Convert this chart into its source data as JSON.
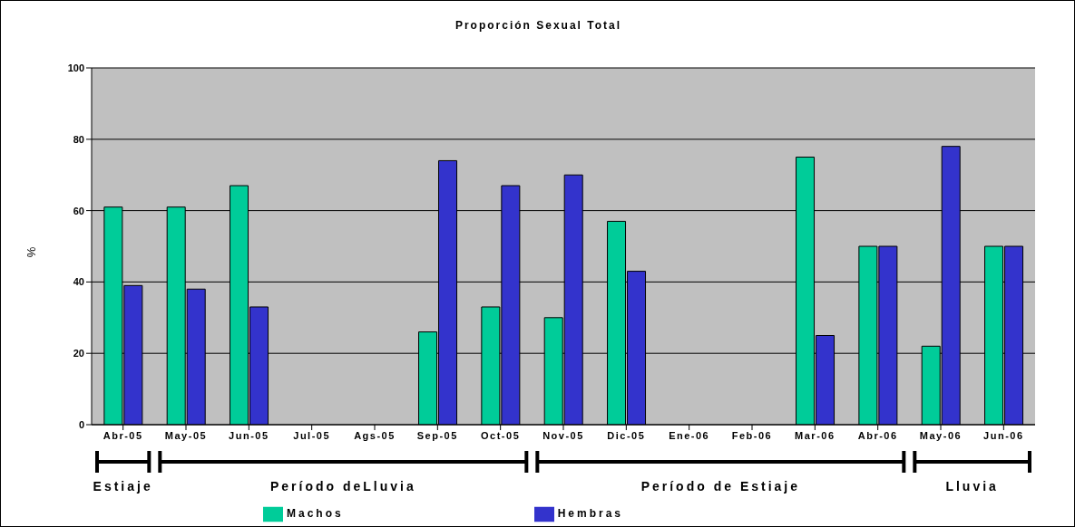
{
  "chart_data": {
    "type": "bar",
    "title": "Proporción Sexual Total",
    "ylabel": "%",
    "categories": [
      "Abr-05",
      "May-05",
      "Jun-05",
      "Jul-05",
      "Ags-05",
      "Sep-05",
      "Oct-05",
      "Nov-05",
      "Dic-05",
      "Ene-06",
      "Feb-06",
      "Mar-06",
      "Abr-06",
      "May-06",
      "Jun-06"
    ],
    "series": [
      {
        "name": "Machos",
        "color": "#00cc99",
        "values": [
          61,
          61,
          67,
          null,
          null,
          26,
          33,
          30,
          57,
          null,
          null,
          75,
          50,
          22,
          50
        ]
      },
      {
        "name": "Hembras",
        "color": "#3333cc",
        "values": [
          39,
          38,
          33,
          null,
          null,
          74,
          67,
          70,
          43,
          null,
          null,
          25,
          50,
          78,
          50
        ]
      }
    ],
    "ylim": [
      0,
      100
    ],
    "yticks": [
      0,
      20,
      40,
      60,
      80,
      100
    ],
    "grid": "y",
    "legend": "bottom",
    "annotations": [
      "Estiaje",
      "Período deLluvia",
      "Período de Estiaje",
      "Lluvia"
    ]
  }
}
